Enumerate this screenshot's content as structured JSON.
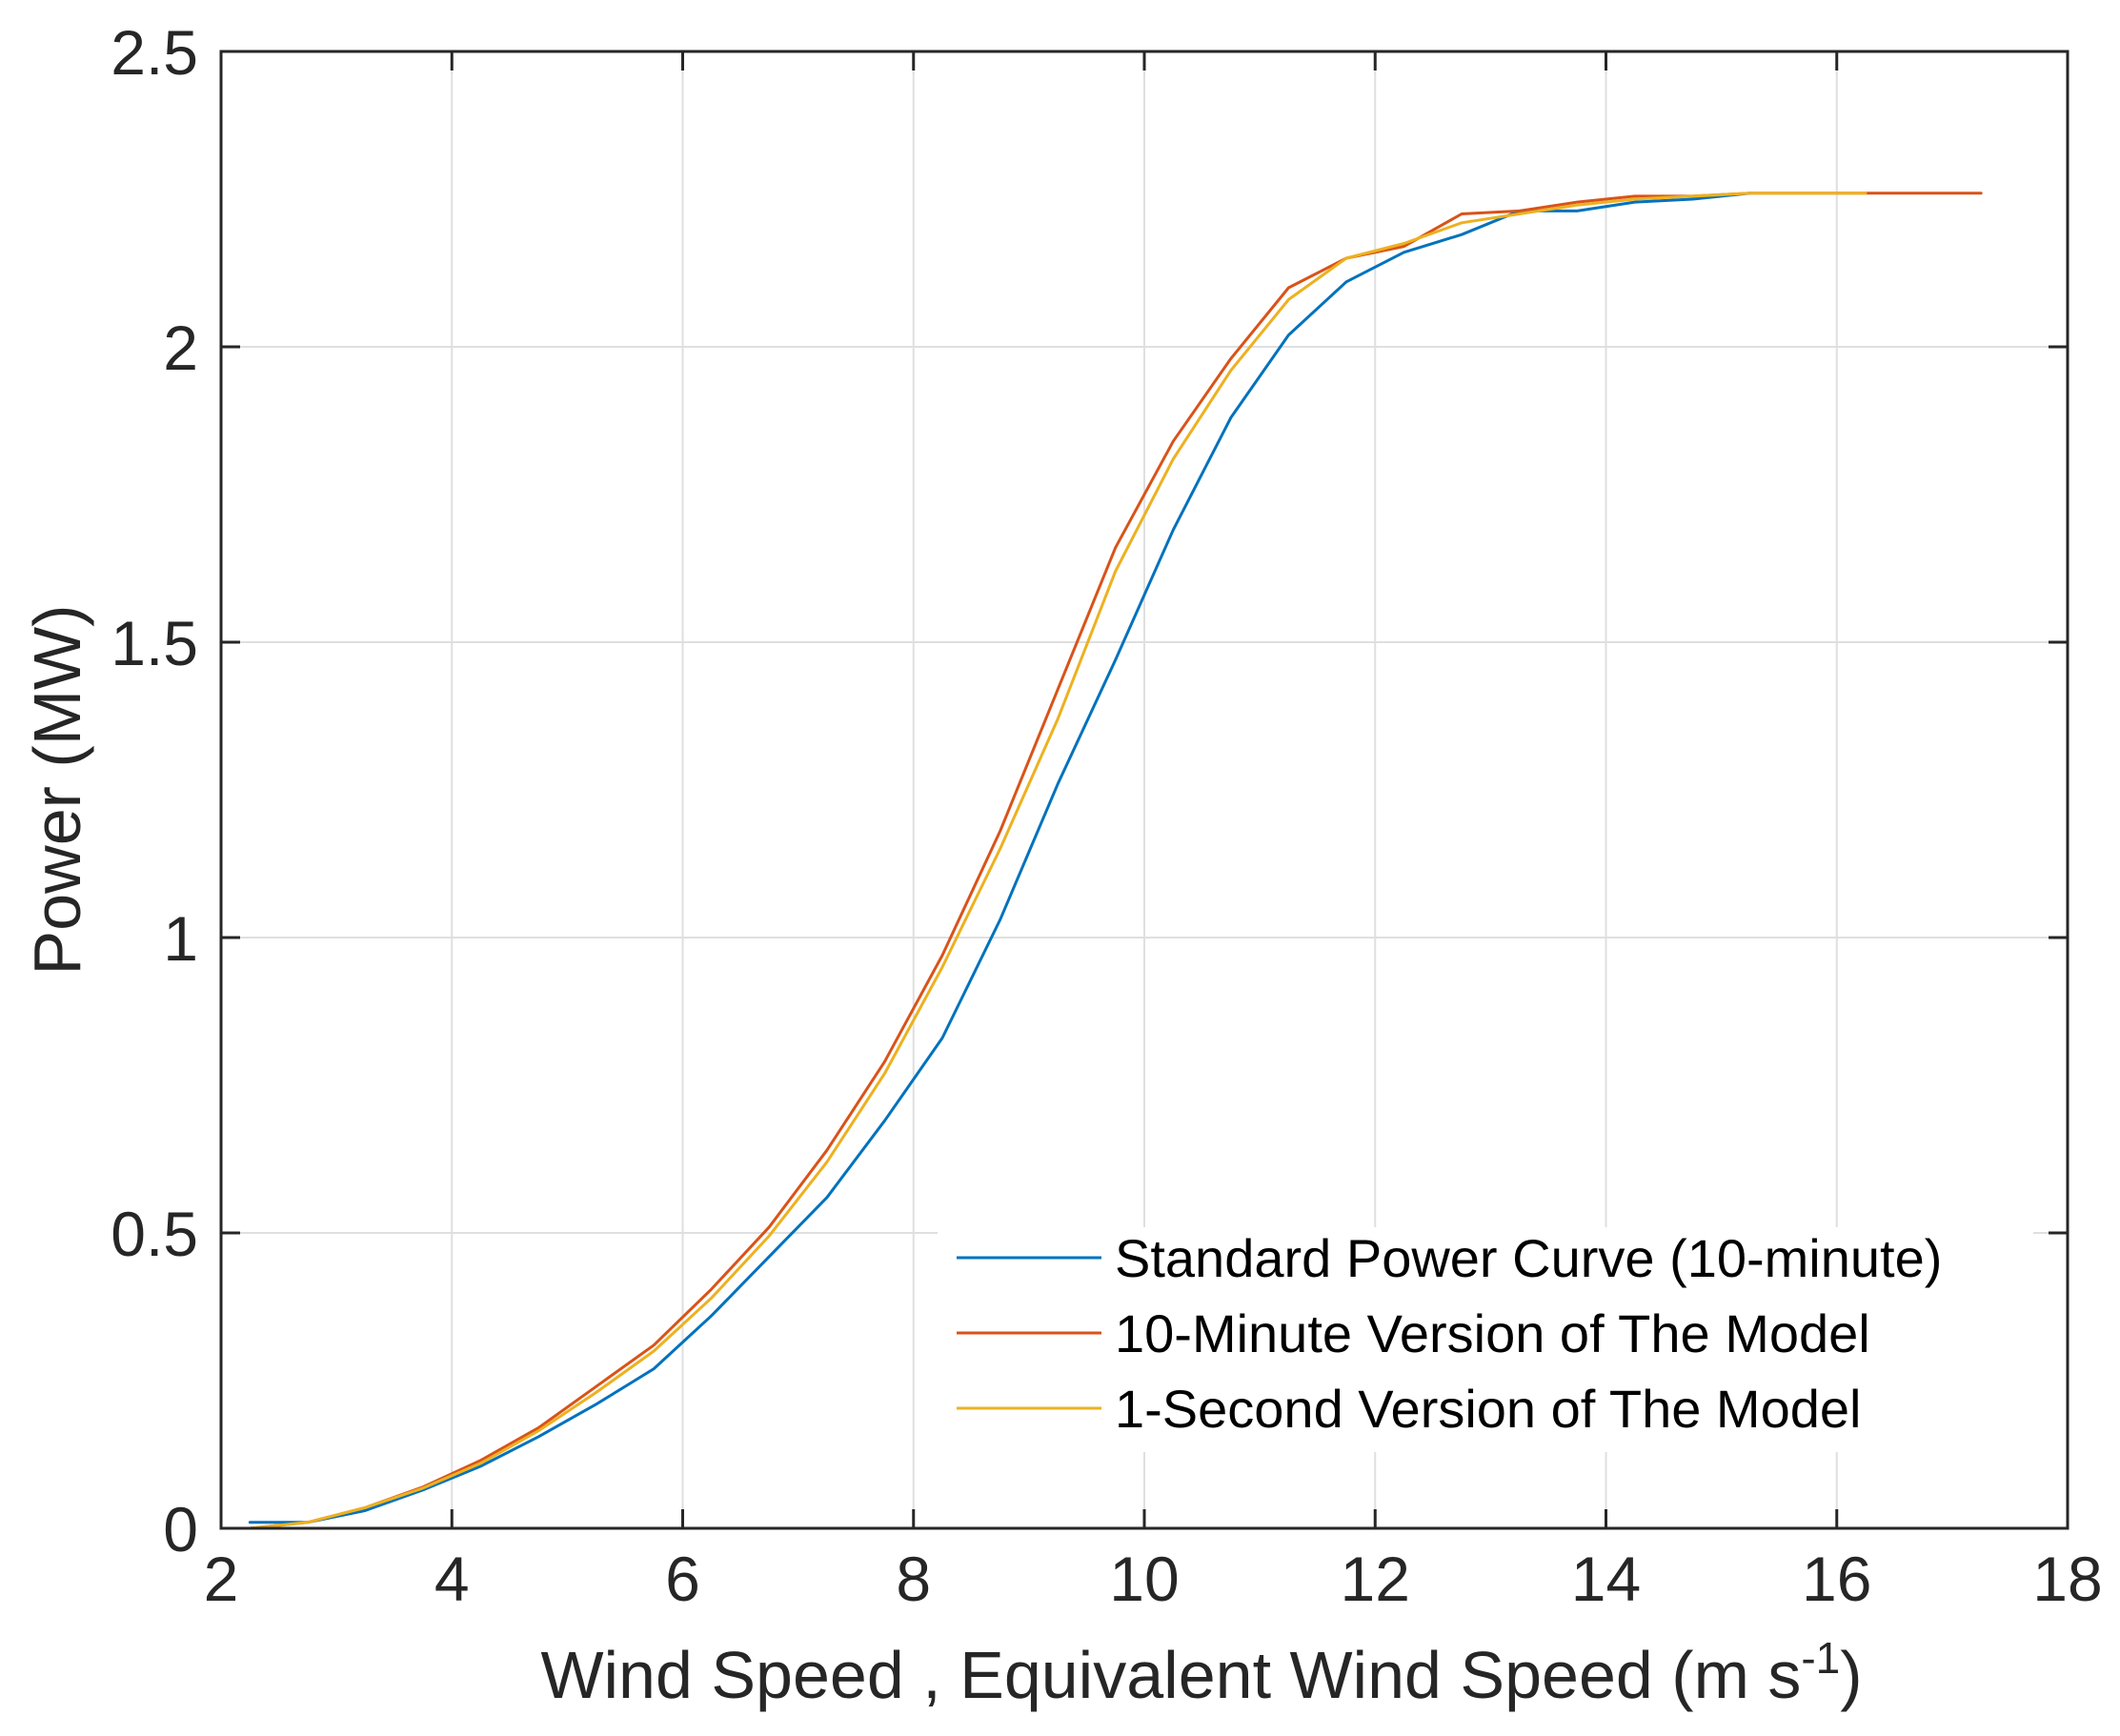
{
  "chart_data": {
    "type": "line",
    "title": "",
    "xlabel": "Wind Speed , Equivalent Wind Speed (m s",
    "xlabel_superscript": "-1",
    "xlabel_suffix": ")",
    "ylabel": "Power (MW)",
    "xlim": [
      2,
      18
    ],
    "ylim": [
      0,
      2.5
    ],
    "xticks": [
      2,
      4,
      6,
      8,
      10,
      12,
      14,
      16,
      18
    ],
    "yticks": [
      0,
      0.5,
      1,
      1.5,
      2,
      2.5
    ],
    "xtick_labels": [
      "2",
      "4",
      "6",
      "8",
      "10",
      "12",
      "14",
      "16",
      "18"
    ],
    "ytick_labels": [
      "0",
      "0.5",
      "1",
      "1.5",
      "2",
      "2.5"
    ],
    "grid": true,
    "legend_position": "bottom-right",
    "series": [
      {
        "name": "Standard Power Curve (10-minute)",
        "color": "#0072BD",
        "x": [
          2.25,
          2.75,
          3.25,
          3.75,
          4.25,
          4.75,
          5.25,
          5.75,
          6.25,
          6.75,
          7.25,
          7.75,
          8.25,
          8.75,
          9.25,
          9.75,
          10.25,
          10.75,
          11.25,
          11.75,
          12.25,
          12.75,
          13.25,
          13.75,
          14.25,
          14.75,
          15.25
        ],
        "y": [
          0.01,
          0.01,
          0.03,
          0.065,
          0.105,
          0.155,
          0.21,
          0.27,
          0.36,
          0.46,
          0.56,
          0.69,
          0.83,
          1.03,
          1.26,
          1.47,
          1.69,
          1.88,
          2.02,
          2.11,
          2.16,
          2.19,
          2.23,
          2.23,
          2.245,
          2.25,
          2.26
        ]
      },
      {
        "name": "10-Minute Version of The Model",
        "color": "#D95319",
        "x": [
          2.25,
          2.75,
          3.25,
          3.75,
          4.25,
          4.75,
          5.25,
          5.75,
          6.25,
          6.75,
          7.25,
          7.75,
          8.25,
          8.75,
          9.25,
          9.75,
          10.25,
          10.75,
          11.25,
          11.75,
          12.25,
          12.75,
          13.25,
          13.75,
          14.25,
          14.75,
          15.25,
          15.75,
          16.25,
          16.75,
          17.25
        ],
        "y": [
          0.0,
          0.01,
          0.035,
          0.07,
          0.115,
          0.17,
          0.24,
          0.31,
          0.405,
          0.51,
          0.64,
          0.79,
          0.97,
          1.18,
          1.42,
          1.66,
          1.84,
          1.98,
          2.1,
          2.15,
          2.17,
          2.225,
          2.23,
          2.245,
          2.255,
          2.255,
          2.26,
          2.26,
          2.26,
          2.26,
          2.26
        ]
      },
      {
        "name": "1-Second Version of The Model",
        "color": "#EDB120",
        "x": [
          2.25,
          2.75,
          3.25,
          3.75,
          4.25,
          4.75,
          5.25,
          5.75,
          6.25,
          6.75,
          7.25,
          7.75,
          8.25,
          8.75,
          9.25,
          9.75,
          10.25,
          10.75,
          11.25,
          11.75,
          12.25,
          12.75,
          13.25,
          13.75,
          14.25,
          14.75,
          15.25,
          15.75,
          16.25
        ],
        "y": [
          0.0,
          0.01,
          0.035,
          0.068,
          0.11,
          0.165,
          0.23,
          0.3,
          0.39,
          0.495,
          0.62,
          0.77,
          0.95,
          1.15,
          1.37,
          1.62,
          1.81,
          1.96,
          2.08,
          2.15,
          2.175,
          2.21,
          2.225,
          2.24,
          2.25,
          2.255,
          2.26,
          2.26,
          2.26
        ]
      }
    ]
  }
}
